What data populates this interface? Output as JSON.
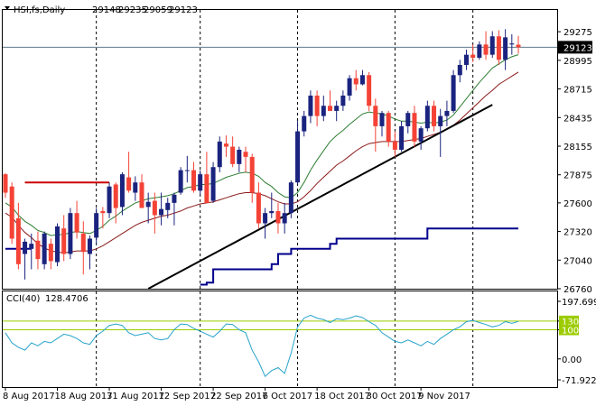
{
  "header": {
    "symbol": "HSI,fs,Daily",
    "open": "29148",
    "high": "29235",
    "low": "29059",
    "close": "29123"
  },
  "cci_header": {
    "label": "CCI(40)",
    "value": "128.4706"
  },
  "current_price_label": "29123",
  "colors": {
    "up_candle": "#1a237e",
    "down_candle": "#f44336",
    "ma_fast": "#2e7d32",
    "ma_slow": "#8b1a1a",
    "trailing_stop": "#00008b",
    "trendline": "#000000",
    "resistance": "#cc0000",
    "cci_line": "#26a3c9",
    "cci_levels": "#9ccc00",
    "price_line": "#5f7a8a"
  },
  "chart_data": [
    {
      "type": "candlestick",
      "panel": "price",
      "ylim": [
        26760,
        29400
      ],
      "y_ticks": [
        "29275",
        "28995",
        "28715",
        "28435",
        "28155",
        "27875",
        "27600",
        "27320",
        "27040",
        "26760"
      ],
      "x_tick_labels": [
        "8 Aug 2017",
        "18 Aug 2017",
        "31 Aug 2017",
        "12 Sep 2017",
        "22 Sep 2017",
        "6 Oct 2017",
        "18 Oct 2017",
        "30 Oct 2017",
        "9 Nov 2017"
      ],
      "ohlc": [
        [
          27880,
          27890,
          27650,
          27700
        ],
        [
          27760,
          27800,
          27200,
          27250
        ],
        [
          27450,
          27600,
          26950,
          27000
        ],
        [
          27100,
          27250,
          26850,
          27220
        ],
        [
          27150,
          27300,
          26950,
          27200
        ],
        [
          27230,
          27320,
          26950,
          27050
        ],
        [
          27000,
          27320,
          26950,
          27300
        ],
        [
          27200,
          27250,
          26950,
          27030
        ],
        [
          27020,
          27400,
          26980,
          27370
        ],
        [
          27350,
          27480,
          27030,
          27100
        ],
        [
          27100,
          27550,
          27050,
          27500
        ],
        [
          27500,
          27620,
          27250,
          27310
        ],
        [
          27300,
          27420,
          26900,
          27120
        ],
        [
          27100,
          27280,
          26950,
          27250
        ],
        [
          27260,
          27550,
          27200,
          27500
        ],
        [
          27520,
          27560,
          27350,
          27500
        ],
        [
          27500,
          27800,
          27450,
          27760
        ],
        [
          27780,
          27800,
          27400,
          27550
        ],
        [
          27560,
          27900,
          27480,
          27880
        ],
        [
          27850,
          28100,
          27700,
          27720
        ],
        [
          27700,
          27860,
          27620,
          27800
        ],
        [
          27800,
          27880,
          27550,
          27550
        ],
        [
          27560,
          27700,
          27400,
          27610
        ],
        [
          27620,
          27700,
          27300,
          27480
        ],
        [
          27480,
          27700,
          27380,
          27540
        ],
        [
          27530,
          27650,
          27450,
          27600
        ],
        [
          27600,
          27700,
          27380,
          27680
        ],
        [
          27700,
          27950,
          27680,
          27920
        ],
        [
          27920,
          28060,
          27800,
          27920
        ],
        [
          27920,
          28000,
          27700,
          27720
        ],
        [
          27720,
          27920,
          27680,
          27880
        ],
        [
          27880,
          28100,
          27600,
          27600
        ],
        [
          27620,
          28000,
          27600,
          27950
        ],
        [
          27950,
          28250,
          27900,
          28200
        ],
        [
          28180,
          28260,
          28050,
          28150
        ],
        [
          28150,
          28250,
          27950,
          27980
        ],
        [
          27980,
          28150,
          27900,
          28120
        ],
        [
          28100,
          28150,
          27900,
          28050
        ],
        [
          28050,
          28080,
          27600,
          27700
        ],
        [
          27700,
          27800,
          27350,
          27400
        ],
        [
          27400,
          27550,
          27250,
          27500
        ],
        [
          27500,
          27700,
          27450,
          27520
        ],
        [
          27520,
          27600,
          27300,
          27400
        ],
        [
          27400,
          27600,
          27300,
          27500
        ],
        [
          27500,
          27820,
          27450,
          27800
        ],
        [
          27800,
          28400,
          27780,
          28300
        ],
        [
          28300,
          28500,
          28250,
          28450
        ],
        [
          28450,
          28700,
          28380,
          28650
        ],
        [
          28650,
          28700,
          28350,
          28450
        ],
        [
          28450,
          28650,
          28400,
          28550
        ],
        [
          28550,
          28700,
          28500,
          28500
        ],
        [
          28500,
          28600,
          28400,
          28550
        ],
        [
          28550,
          28700,
          28500,
          28650
        ],
        [
          28650,
          28850,
          28600,
          28820
        ],
        [
          28820,
          28900,
          28700,
          28760
        ],
        [
          28760,
          28900,
          28750,
          28850
        ],
        [
          28850,
          28880,
          28500,
          28550
        ],
        [
          28550,
          28620,
          28100,
          28350
        ],
        [
          28350,
          28500,
          28250,
          28480
        ],
        [
          28480,
          28500,
          28150,
          28200
        ],
        [
          28200,
          28300,
          28050,
          28120
        ],
        [
          28120,
          28400,
          28100,
          28350
        ],
        [
          28350,
          28500,
          28280,
          28480
        ],
        [
          28480,
          28550,
          28150,
          28200
        ],
        [
          28200,
          28350,
          28120,
          28330
        ],
        [
          28330,
          28600,
          28300,
          28550
        ],
        [
          28550,
          28600,
          28300,
          28350
        ],
        [
          28350,
          28520,
          28050,
          28450
        ],
        [
          28450,
          28600,
          28350,
          28500
        ],
        [
          28500,
          28900,
          28480,
          28850
        ],
        [
          28850,
          29000,
          28780,
          28950
        ],
        [
          28950,
          29100,
          28900,
          29050
        ],
        [
          29050,
          29150,
          28980,
          29020
        ],
        [
          29020,
          29180,
          29000,
          29150
        ],
        [
          29150,
          29280,
          29000,
          29050
        ],
        [
          29050,
          29280,
          29020,
          29230
        ],
        [
          29230,
          29290,
          28950,
          29000
        ],
        [
          29000,
          29300,
          28900,
          29220
        ],
        [
          29150,
          29250,
          29050,
          29160
        ],
        [
          29148,
          29235,
          29059,
          29123
        ]
      ],
      "ma_fast": [
        27600,
        27560,
        27480,
        27420,
        27380,
        27330,
        27310,
        27280,
        27290,
        27290,
        27310,
        27320,
        27310,
        27300,
        27330,
        27370,
        27430,
        27470,
        27520,
        27560,
        27600,
        27620,
        27640,
        27650,
        27660,
        27670,
        27690,
        27720,
        27750,
        27760,
        27780,
        27780,
        27790,
        27820,
        27850,
        27870,
        27890,
        27900,
        27890,
        27860,
        27800,
        27760,
        27700,
        27660,
        27650,
        27700,
        27800,
        27920,
        28020,
        28110,
        28200,
        28260,
        28310,
        28370,
        28420,
        28470,
        28490,
        28480,
        28470,
        28450,
        28420,
        28400,
        28400,
        28390,
        28380,
        28390,
        28380,
        28390,
        28410,
        28460,
        28540,
        28620,
        28700,
        28780,
        28850,
        28920,
        28960,
        29000,
        29030,
        29050
      ],
      "ma_slow": [
        27500,
        27460,
        27380,
        27310,
        27260,
        27200,
        27160,
        27130,
        27120,
        27110,
        27120,
        27130,
        27130,
        27130,
        27150,
        27180,
        27220,
        27260,
        27300,
        27340,
        27380,
        27410,
        27430,
        27450,
        27470,
        27480,
        27500,
        27520,
        27550,
        27570,
        27590,
        27600,
        27610,
        27630,
        27650,
        27670,
        27690,
        27700,
        27700,
        27690,
        27670,
        27640,
        27610,
        27590,
        27590,
        27610,
        27660,
        27720,
        27790,
        27850,
        27910,
        27970,
        28010,
        28060,
        28110,
        28150,
        28180,
        28190,
        28200,
        28200,
        28200,
        28200,
        28210,
        28220,
        28230,
        28250,
        28270,
        28290,
        28320,
        28360,
        28410,
        28470,
        28530,
        28590,
        28650,
        28700,
        28760,
        28800,
        28840,
        28880
      ],
      "trailing_stop": [
        27150,
        27150,
        27150,
        27150,
        27150,
        null,
        null,
        null,
        null,
        null,
        null,
        null,
        null,
        null,
        null,
        null,
        null,
        null,
        null,
        null,
        null,
        null,
        null,
        null,
        null,
        null,
        null,
        null,
        null,
        null,
        26800,
        26820,
        26950,
        26950,
        26950,
        26950,
        26950,
        26950,
        26950,
        26950,
        26950,
        27000,
        27100,
        27100,
        27150,
        27150,
        27150,
        27150,
        27150,
        27150,
        27200,
        27250,
        27250,
        27250,
        27250,
        27250,
        27250,
        27250,
        27250,
        27250,
        27250,
        27250,
        27250,
        27250,
        27250,
        27350,
        27350,
        27350,
        27350,
        27350,
        27350,
        27350,
        27350,
        27350,
        27350,
        27350,
        27350,
        27350,
        27350,
        27350
      ],
      "trendline": {
        "from": [
          22,
          26760
        ],
        "to": [
          75,
          28560
        ]
      },
      "resistance": {
        "value": 27800,
        "from": 3,
        "to": 16
      },
      "current_price": 29123
    },
    {
      "type": "line",
      "panel": "indicator",
      "name": "CCI(40)",
      "ylim": [
        -71.9221,
        197.6998
      ],
      "y_ticks": [
        "197.6998",
        "130",
        "100",
        "0.00",
        "-71.9221"
      ],
      "levels": [
        130,
        100
      ],
      "values": [
        90,
        55,
        40,
        30,
        55,
        45,
        60,
        55,
        70,
        85,
        80,
        70,
        55,
        50,
        80,
        95,
        115,
        120,
        115,
        90,
        80,
        85,
        90,
        70,
        65,
        70,
        100,
        120,
        118,
        105,
        95,
        85,
        75,
        95,
        120,
        118,
        100,
        90,
        30,
        -10,
        -60,
        -40,
        -30,
        -50,
        20,
        110,
        140,
        150,
        140,
        135,
        125,
        138,
        135,
        140,
        148,
        142,
        128,
        115,
        90,
        75,
        60,
        55,
        65,
        55,
        45,
        60,
        50,
        70,
        85,
        100,
        110,
        128,
        132,
        125,
        118,
        110,
        115,
        128,
        122,
        128.47
      ]
    }
  ]
}
